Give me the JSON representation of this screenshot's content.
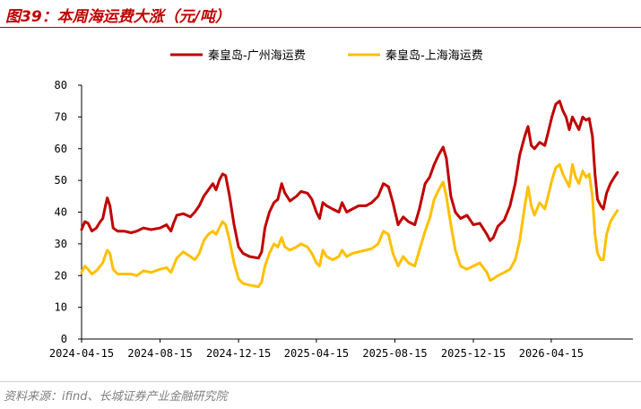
{
  "header": {
    "title": "图39：本周海运费大涨（元/吨）"
  },
  "footer": {
    "source": "资料来源：ifind、长城证券产业金融研究院"
  },
  "chart_data": {
    "type": "line",
    "title": "图39：本周海运费大涨（元/吨）",
    "xlabel": "",
    "ylabel": "",
    "ylim": [
      0,
      80
    ],
    "yticks": [
      0,
      10,
      20,
      30,
      40,
      50,
      60,
      70,
      80
    ],
    "xlim": [
      "2024-04-15",
      "2026-08-20"
    ],
    "xticks": [
      "2024-04-15",
      "2024-08-15",
      "2024-12-15",
      "2025-04-15",
      "2025-08-15",
      "2025-12-15",
      "2026-04-15"
    ],
    "grid": false,
    "legend_position": "top-center",
    "series": [
      {
        "name": "秦皇岛-广州海运费",
        "color": "#c00000",
        "points": [
          [
            "2024-04-15",
            34.5
          ],
          [
            "2024-04-20",
            37
          ],
          [
            "2024-04-25",
            36.5
          ],
          [
            "2024-05-01",
            34
          ],
          [
            "2024-05-08",
            35
          ],
          [
            "2024-05-14",
            37
          ],
          [
            "2024-05-18",
            38
          ],
          [
            "2024-05-22",
            42
          ],
          [
            "2024-05-25",
            44.5
          ],
          [
            "2024-05-29",
            42
          ],
          [
            "2024-06-03",
            35
          ],
          [
            "2024-06-10",
            34
          ],
          [
            "2024-06-20",
            34
          ],
          [
            "2024-07-01",
            33.5
          ],
          [
            "2024-07-10",
            34
          ],
          [
            "2024-07-20",
            35
          ],
          [
            "2024-08-01",
            34.5
          ],
          [
            "2024-08-15",
            35
          ],
          [
            "2024-08-25",
            36
          ],
          [
            "2024-09-01",
            34
          ],
          [
            "2024-09-05",
            36.5
          ],
          [
            "2024-09-10",
            39
          ],
          [
            "2024-09-20",
            39.5
          ],
          [
            "2024-10-01",
            38.5
          ],
          [
            "2024-10-08",
            40
          ],
          [
            "2024-10-15",
            42
          ],
          [
            "2024-10-22",
            45
          ],
          [
            "2024-10-29",
            47
          ],
          [
            "2024-11-05",
            49
          ],
          [
            "2024-11-10",
            47
          ],
          [
            "2024-11-15",
            50
          ],
          [
            "2024-11-20",
            52
          ],
          [
            "2024-11-25",
            51.5
          ],
          [
            "2024-12-01",
            45
          ],
          [
            "2024-12-08",
            36
          ],
          [
            "2024-12-15",
            29
          ],
          [
            "2024-12-22",
            27
          ],
          [
            "2025-01-01",
            26
          ],
          [
            "2025-01-15",
            25.5
          ],
          [
            "2025-01-20",
            27.5
          ],
          [
            "2025-01-25",
            35
          ],
          [
            "2025-02-01",
            40
          ],
          [
            "2025-02-08",
            43
          ],
          [
            "2025-02-14",
            44
          ],
          [
            "2025-02-20",
            49
          ],
          [
            "2025-02-25",
            46
          ],
          [
            "2025-03-05",
            43.5
          ],
          [
            "2025-03-15",
            45
          ],
          [
            "2025-03-22",
            46.5
          ],
          [
            "2025-04-01",
            46
          ],
          [
            "2025-04-08",
            44
          ],
          [
            "2025-04-15",
            40
          ],
          [
            "2025-04-20",
            38
          ],
          [
            "2025-04-25",
            43
          ],
          [
            "2025-05-01",
            42
          ],
          [
            "2025-05-10",
            41
          ],
          [
            "2025-05-20",
            40
          ],
          [
            "2025-05-25",
            43
          ],
          [
            "2025-06-01",
            40
          ],
          [
            "2025-06-10",
            41
          ],
          [
            "2025-06-20",
            42
          ],
          [
            "2025-07-01",
            42
          ],
          [
            "2025-07-10",
            43
          ],
          [
            "2025-07-20",
            45
          ],
          [
            "2025-07-28",
            49
          ],
          [
            "2025-08-05",
            48
          ],
          [
            "2025-08-12",
            43
          ],
          [
            "2025-08-20",
            36
          ],
          [
            "2025-08-28",
            38.5
          ],
          [
            "2025-09-05",
            37
          ],
          [
            "2025-09-15",
            36
          ],
          [
            "2025-09-22",
            41
          ],
          [
            "2025-10-01",
            49
          ],
          [
            "2025-10-08",
            51
          ],
          [
            "2025-10-15",
            55
          ],
          [
            "2025-10-22",
            58
          ],
          [
            "2025-10-29",
            60.5
          ],
          [
            "2025-11-03",
            57
          ],
          [
            "2025-11-10",
            45
          ],
          [
            "2025-11-17",
            40
          ],
          [
            "2025-11-25",
            38
          ],
          [
            "2025-12-05",
            39
          ],
          [
            "2025-12-15",
            36
          ],
          [
            "2025-12-25",
            36.5
          ],
          [
            "2026-01-05",
            33
          ],
          [
            "2026-01-10",
            31
          ],
          [
            "2026-01-15",
            32
          ],
          [
            "2026-01-22",
            35.5
          ],
          [
            "2026-02-01",
            37.5
          ],
          [
            "2026-02-10",
            42
          ],
          [
            "2026-02-18",
            49
          ],
          [
            "2026-02-25",
            58
          ],
          [
            "2026-03-05",
            64
          ],
          [
            "2026-03-10",
            67
          ],
          [
            "2026-03-15",
            61
          ],
          [
            "2026-03-20",
            60
          ],
          [
            "2026-03-28",
            62
          ],
          [
            "2026-04-05",
            61
          ],
          [
            "2026-04-10",
            65
          ],
          [
            "2026-04-16",
            70
          ],
          [
            "2026-04-22",
            74
          ],
          [
            "2026-04-28",
            75
          ],
          [
            "2026-05-03",
            72
          ],
          [
            "2026-05-08",
            70
          ],
          [
            "2026-05-13",
            66
          ],
          [
            "2026-05-18",
            70
          ],
          [
            "2026-05-23",
            68
          ],
          [
            "2026-05-28",
            66
          ],
          [
            "2026-06-03",
            70
          ],
          [
            "2026-06-08",
            69
          ],
          [
            "2026-06-13",
            69.5
          ],
          [
            "2026-06-18",
            64
          ],
          [
            "2026-06-22",
            52
          ],
          [
            "2026-06-26",
            44
          ],
          [
            "2026-07-01",
            42
          ],
          [
            "2026-07-05",
            41
          ],
          [
            "2026-07-10",
            46
          ],
          [
            "2026-07-16",
            49
          ],
          [
            "2026-07-22",
            51
          ],
          [
            "2026-07-27",
            52.5
          ]
        ]
      },
      {
        "name": "秦皇岛-上海海运费",
        "color": "#ffc000",
        "points": [
          [
            "2024-04-15",
            21
          ],
          [
            "2024-04-20",
            23
          ],
          [
            "2024-04-25",
            22
          ],
          [
            "2024-05-01",
            20.5
          ],
          [
            "2024-05-08",
            21.5
          ],
          [
            "2024-05-14",
            23
          ],
          [
            "2024-05-18",
            24
          ],
          [
            "2024-05-22",
            26.5
          ],
          [
            "2024-05-25",
            28
          ],
          [
            "2024-05-29",
            27
          ],
          [
            "2024-06-03",
            22
          ],
          [
            "2024-06-10",
            20.5
          ],
          [
            "2024-06-20",
            20.5
          ],
          [
            "2024-07-01",
            20.5
          ],
          [
            "2024-07-10",
            20
          ],
          [
            "2024-07-20",
            21.5
          ],
          [
            "2024-08-01",
            21
          ],
          [
            "2024-08-15",
            22
          ],
          [
            "2024-08-25",
            22.5
          ],
          [
            "2024-09-01",
            21
          ],
          [
            "2024-09-05",
            23
          ],
          [
            "2024-09-10",
            25.5
          ],
          [
            "2024-09-20",
            27.5
          ],
          [
            "2024-10-01",
            26
          ],
          [
            "2024-10-08",
            25
          ],
          [
            "2024-10-15",
            27
          ],
          [
            "2024-10-22",
            31
          ],
          [
            "2024-10-29",
            33
          ],
          [
            "2024-11-05",
            34
          ],
          [
            "2024-11-10",
            33
          ],
          [
            "2024-11-15",
            35
          ],
          [
            "2024-11-20",
            37
          ],
          [
            "2024-11-25",
            36
          ],
          [
            "2024-12-01",
            31
          ],
          [
            "2024-12-08",
            24
          ],
          [
            "2024-12-15",
            19
          ],
          [
            "2024-12-22",
            17.5
          ],
          [
            "2025-01-01",
            17
          ],
          [
            "2025-01-15",
            16.5
          ],
          [
            "2025-01-20",
            18
          ],
          [
            "2025-01-25",
            23
          ],
          [
            "2025-02-01",
            27
          ],
          [
            "2025-02-08",
            30
          ],
          [
            "2025-02-14",
            29
          ],
          [
            "2025-02-20",
            32
          ],
          [
            "2025-02-25",
            29
          ],
          [
            "2025-03-05",
            28
          ],
          [
            "2025-03-15",
            29
          ],
          [
            "2025-03-22",
            30
          ],
          [
            "2025-04-01",
            29
          ],
          [
            "2025-04-08",
            27
          ],
          [
            "2025-04-15",
            24
          ],
          [
            "2025-04-20",
            23
          ],
          [
            "2025-04-25",
            28
          ],
          [
            "2025-05-01",
            26
          ],
          [
            "2025-05-10",
            25
          ],
          [
            "2025-05-20",
            26
          ],
          [
            "2025-05-25",
            28
          ],
          [
            "2025-06-01",
            26
          ],
          [
            "2025-06-10",
            27
          ],
          [
            "2025-06-20",
            27.5
          ],
          [
            "2025-07-01",
            28
          ],
          [
            "2025-07-10",
            28.5
          ],
          [
            "2025-07-20",
            30
          ],
          [
            "2025-07-28",
            34
          ],
          [
            "2025-08-05",
            33
          ],
          [
            "2025-08-12",
            27
          ],
          [
            "2025-08-20",
            23
          ],
          [
            "2025-08-28",
            26
          ],
          [
            "2025-09-05",
            24
          ],
          [
            "2025-09-15",
            23
          ],
          [
            "2025-09-22",
            28
          ],
          [
            "2025-10-01",
            34
          ],
          [
            "2025-10-08",
            38
          ],
          [
            "2025-10-15",
            44
          ],
          [
            "2025-10-22",
            47
          ],
          [
            "2025-10-29",
            49.5
          ],
          [
            "2025-11-03",
            45
          ],
          [
            "2025-11-10",
            36
          ],
          [
            "2025-11-17",
            28
          ],
          [
            "2025-11-25",
            23
          ],
          [
            "2025-12-05",
            22
          ],
          [
            "2025-12-15",
            23
          ],
          [
            "2025-12-25",
            24
          ],
          [
            "2026-01-05",
            21
          ],
          [
            "2026-01-10",
            18.5
          ],
          [
            "2026-01-15",
            19
          ],
          [
            "2026-01-22",
            20
          ],
          [
            "2026-02-01",
            21
          ],
          [
            "2026-02-10",
            22
          ],
          [
            "2026-02-18",
            25
          ],
          [
            "2026-02-25",
            31
          ],
          [
            "2026-03-05",
            42
          ],
          [
            "2026-03-10",
            48
          ],
          [
            "2026-03-15",
            42
          ],
          [
            "2026-03-20",
            39
          ],
          [
            "2026-03-28",
            43
          ],
          [
            "2026-04-05",
            41
          ],
          [
            "2026-04-10",
            45
          ],
          [
            "2026-04-16",
            50
          ],
          [
            "2026-04-22",
            54
          ],
          [
            "2026-04-28",
            55
          ],
          [
            "2026-05-03",
            52
          ],
          [
            "2026-05-08",
            50
          ],
          [
            "2026-05-13",
            48
          ],
          [
            "2026-05-18",
            55
          ],
          [
            "2026-05-23",
            51
          ],
          [
            "2026-05-28",
            49
          ],
          [
            "2026-06-03",
            53
          ],
          [
            "2026-06-08",
            51
          ],
          [
            "2026-06-13",
            52
          ],
          [
            "2026-06-18",
            45
          ],
          [
            "2026-06-22",
            33
          ],
          [
            "2026-06-26",
            27
          ],
          [
            "2026-07-01",
            25
          ],
          [
            "2026-07-05",
            25
          ],
          [
            "2026-07-10",
            33
          ],
          [
            "2026-07-16",
            37
          ],
          [
            "2026-07-22",
            39
          ],
          [
            "2026-07-27",
            40.5
          ]
        ]
      }
    ]
  }
}
